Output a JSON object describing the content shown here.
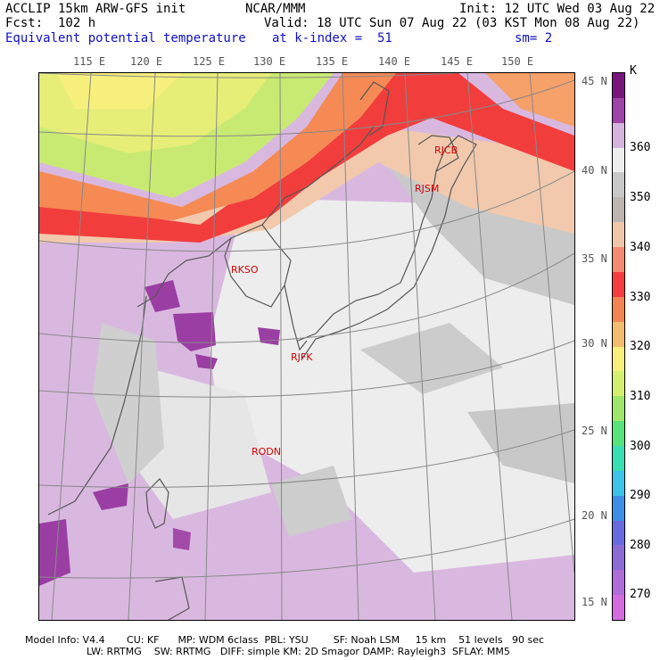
{
  "header": {
    "model_line": "ACCLIP 15km ARW-GFS init",
    "org": "NCAR/MMM",
    "init": "Init: 12 UTC Wed 03 Aug 22",
    "fcst": "Fcst:  102 h",
    "valid": "Valid: 18 UTC Sun 07 Aug 22 (03 KST Mon 08 Aug 22)",
    "field": "Equivalent potential temperature",
    "level": "at k-index =  51",
    "smooth": "sm= 2"
  },
  "axes": {
    "lon_labels": [
      "115 E",
      "120 E",
      "125 E",
      "130 E",
      "135 E",
      "140 E",
      "145 E",
      "150 E"
    ],
    "lat_labels": [
      "45 N",
      "40 N",
      "35 N",
      "30 N",
      "25 N",
      "20 N",
      "15 N"
    ]
  },
  "colorbar": {
    "unit": "K",
    "labels": [
      "360",
      "350",
      "340",
      "330",
      "320",
      "310",
      "300",
      "290",
      "280",
      "270"
    ],
    "colors_top_to_bottom": [
      "#7a1580",
      "#a043a8",
      "#d6b2df",
      "#eeeeee",
      "#c8c8c8",
      "#bdb5b0",
      "#f1c6a8",
      "#f48a6e",
      "#f53d3d",
      "#f48552",
      "#f3bb6e",
      "#f7ee7c",
      "#d4ef70",
      "#9ee66a",
      "#56e37a",
      "#38dfb2",
      "#3cc3e8",
      "#3c8ee6",
      "#6a6ae0",
      "#8c6ad8",
      "#b06cd8",
      "#d46ce0"
    ]
  },
  "stations": [
    {
      "id": "RJCB"
    },
    {
      "id": "RJSM"
    },
    {
      "id": "RKSO"
    },
    {
      "id": "RJFK"
    },
    {
      "id": "RODN"
    }
  ],
  "footer": {
    "line1": "Model Info: V4.4       CU: KF      MP: WDM 6class  PBL: YSU        SF: Noah LSM     15 km    51 levels   90 sec",
    "line2": "LW: RRTMG    SW: RRTMG   DIFF: simple KM: 2D Smagor DAMP: Rayleigh3  SFLAY: MM5"
  }
}
